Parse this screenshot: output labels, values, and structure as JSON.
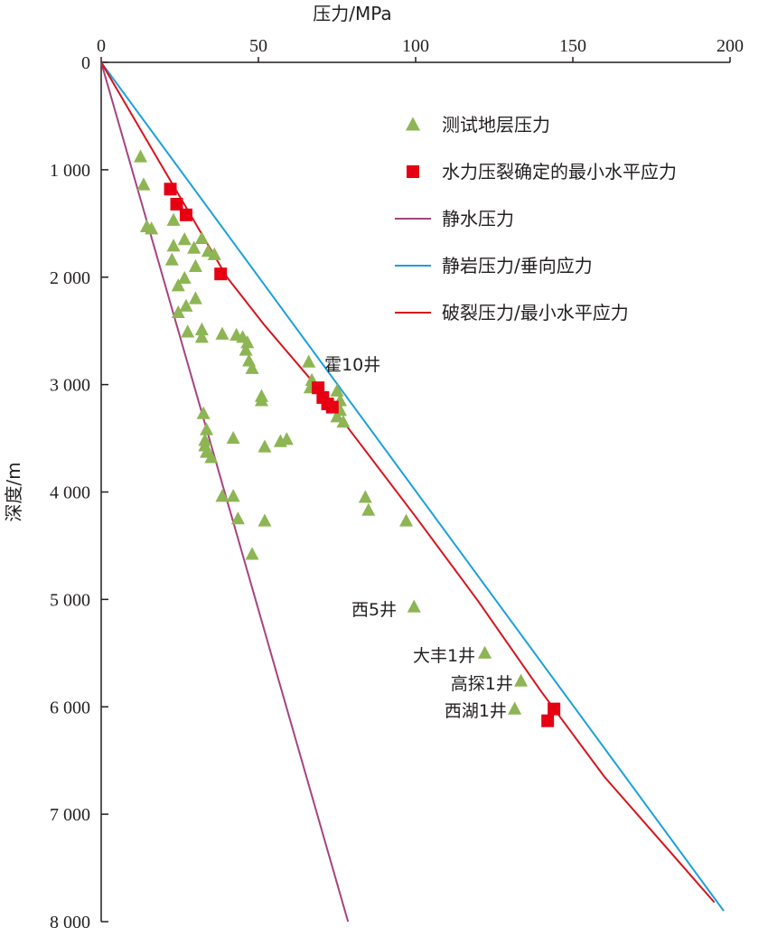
{
  "chart_data": {
    "type": "scatter",
    "x_axis": {
      "label": "压力/MPa",
      "range": [
        0,
        200
      ],
      "ticks": [
        0,
        50,
        100,
        150,
        200
      ],
      "tick_labels": [
        "0",
        "50",
        "100",
        "150",
        "200"
      ],
      "position": "top"
    },
    "y_axis": {
      "label": "深度/m",
      "range": [
        0,
        8000
      ],
      "inverted": true,
      "ticks": [
        0,
        1000,
        2000,
        3000,
        4000,
        5000,
        6000,
        7000,
        8000
      ],
      "tick_labels": [
        "0",
        "1 000",
        "2 000",
        "3 000",
        "4 000",
        "5 000",
        "6 000",
        "7 000",
        "8 000"
      ]
    },
    "grid": false,
    "legend_position": "top-right",
    "colors": {
      "tested": "#8db553",
      "hydrofrac": "#e60012",
      "hydrostatic": "#a8427f",
      "lithostatic": "#1aa0dc",
      "fracture": "#d7141b",
      "axis": "#231f20"
    },
    "series": [
      {
        "name": "测试地层压力",
        "kind": "points",
        "marker": "triangle",
        "points": [
          [
            12.5,
            880
          ],
          [
            13.5,
            1140
          ],
          [
            14.5,
            1530
          ],
          [
            16,
            1550
          ],
          [
            23,
            1470
          ],
          [
            26.5,
            1650
          ],
          [
            32,
            1640
          ],
          [
            29.5,
            1730
          ],
          [
            23,
            1710
          ],
          [
            34,
            1760
          ],
          [
            36,
            1790
          ],
          [
            22.5,
            1840
          ],
          [
            30,
            1900
          ],
          [
            24.5,
            2080
          ],
          [
            26.5,
            2010
          ],
          [
            30,
            2200
          ],
          [
            27,
            2270
          ],
          [
            24.5,
            2330
          ],
          [
            27.5,
            2510
          ],
          [
            32,
            2490
          ],
          [
            32,
            2560
          ],
          [
            38.5,
            2530
          ],
          [
            43,
            2540
          ],
          [
            45,
            2560
          ],
          [
            46.5,
            2610
          ],
          [
            46,
            2680
          ],
          [
            47,
            2780
          ],
          [
            48,
            2850
          ],
          [
            66,
            2790
          ],
          [
            67,
            2960
          ],
          [
            66.5,
            3030
          ],
          [
            75,
            3060
          ],
          [
            76,
            3150
          ],
          [
            76,
            3240
          ],
          [
            75,
            3300
          ],
          [
            77,
            3350
          ],
          [
            51,
            3110
          ],
          [
            51,
            3150
          ],
          [
            32.5,
            3270
          ],
          [
            33.5,
            3420
          ],
          [
            33,
            3520
          ],
          [
            33,
            3570
          ],
          [
            33.5,
            3630
          ],
          [
            35,
            3680
          ],
          [
            42,
            3500
          ],
          [
            52,
            3580
          ],
          [
            57,
            3530
          ],
          [
            59,
            3510
          ],
          [
            38.5,
            4040
          ],
          [
            42,
            4040
          ],
          [
            84,
            4050
          ],
          [
            85,
            4170
          ],
          [
            97,
            4270
          ],
          [
            43.5,
            4250
          ],
          [
            52,
            4270
          ],
          [
            48,
            4580
          ],
          [
            99.5,
            5070
          ],
          [
            122,
            5500
          ],
          [
            133.5,
            5760
          ],
          [
            131.5,
            6020
          ]
        ]
      },
      {
        "name": "水力压裂确定的最小水平应力",
        "kind": "points",
        "marker": "square",
        "points": [
          [
            22,
            1180
          ],
          [
            24,
            1320
          ],
          [
            27,
            1420
          ],
          [
            38,
            1970
          ],
          [
            69,
            3030
          ],
          [
            70.5,
            3120
          ],
          [
            72,
            3180
          ],
          [
            73.5,
            3210
          ],
          [
            144,
            6020
          ],
          [
            142,
            6130
          ]
        ]
      },
      {
        "name": "静水压力",
        "kind": "line",
        "points": [
          [
            0,
            0
          ],
          [
            78.5,
            8000
          ]
        ]
      },
      {
        "name": "静岩压力/垂向应力",
        "kind": "line",
        "points": [
          [
            0,
            0
          ],
          [
            198,
            7900
          ]
        ]
      },
      {
        "name": "破裂压力/最小水平应力",
        "kind": "line",
        "points": [
          [
            0,
            0
          ],
          [
            18,
            900
          ],
          [
            30,
            1500
          ],
          [
            40,
            2000
          ],
          [
            52,
            2450
          ],
          [
            66,
            2930
          ],
          [
            80,
            3460
          ],
          [
            100,
            4230
          ],
          [
            120,
            5020
          ],
          [
            140,
            5860
          ],
          [
            160,
            6650
          ],
          [
            195,
            7820
          ]
        ]
      }
    ],
    "annotations": [
      {
        "text": "霍10井",
        "x": 71,
        "y": 2810,
        "anchor": "start"
      },
      {
        "text": "西5井",
        "x": 94,
        "y": 5090,
        "anchor": "end"
      },
      {
        "text": "大丰1井",
        "x": 119,
        "y": 5520,
        "anchor": "end"
      },
      {
        "text": "高探1井",
        "x": 131,
        "y": 5780,
        "anchor": "end"
      },
      {
        "text": "西湖1井",
        "x": 129,
        "y": 6030,
        "anchor": "end"
      }
    ]
  }
}
